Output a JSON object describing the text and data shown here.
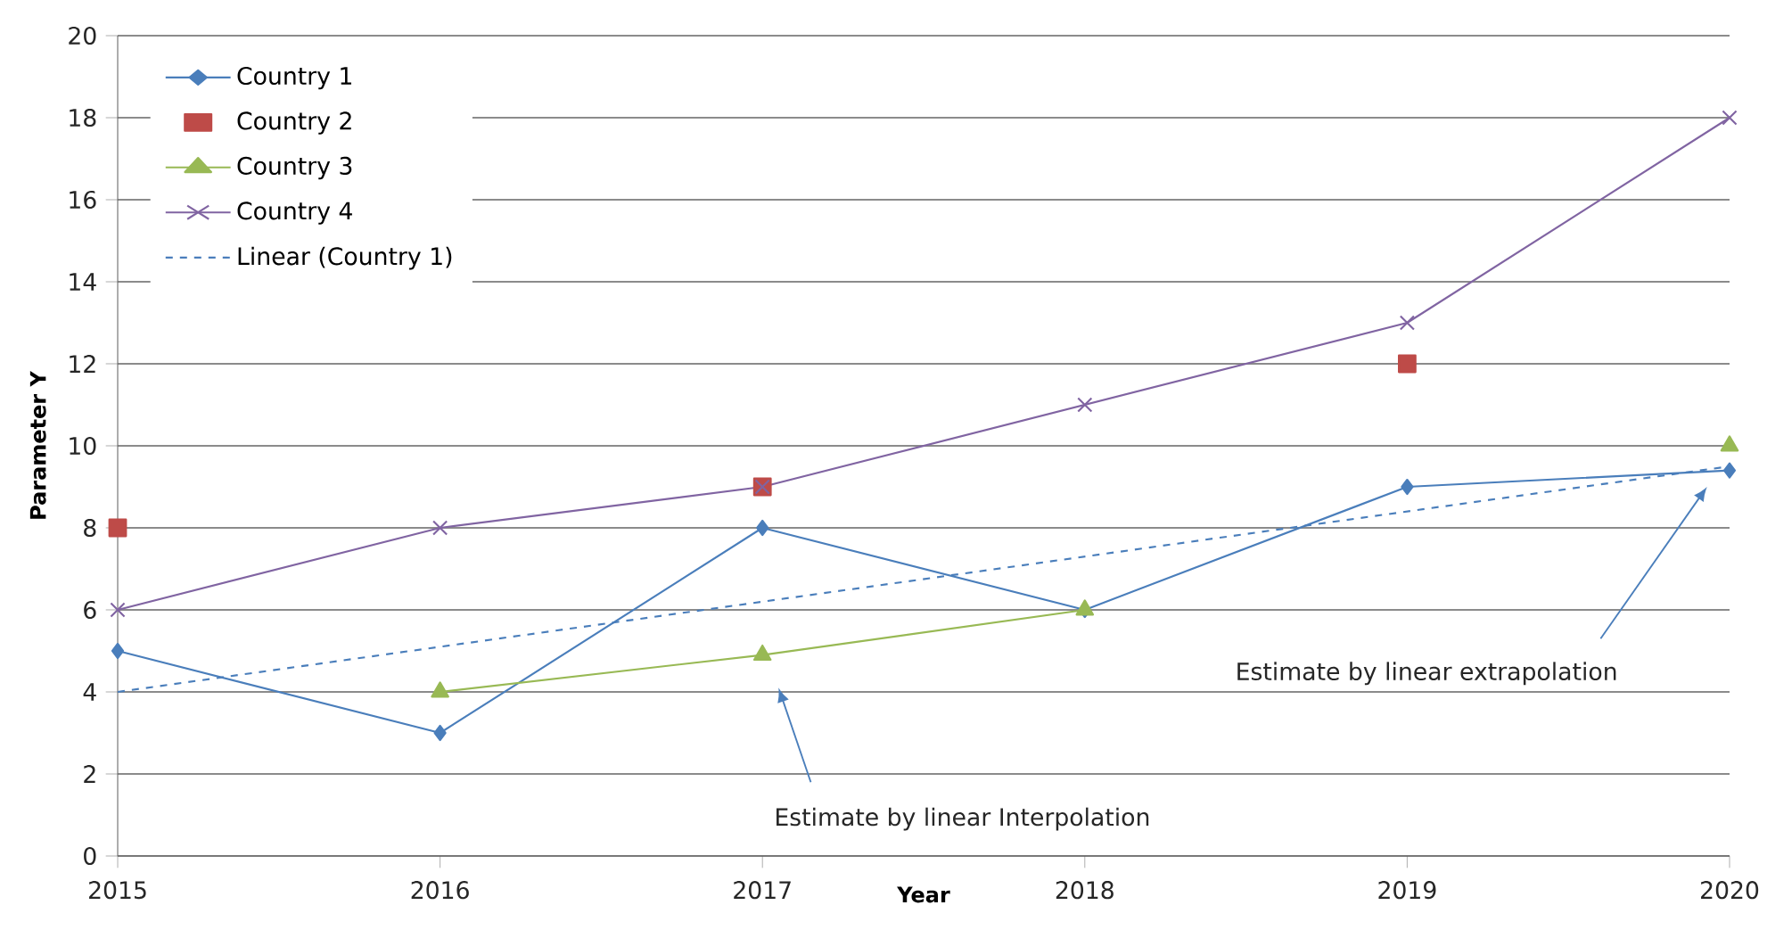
{
  "chart_data": {
    "type": "line",
    "xlabel": "Year",
    "ylabel": "Parameter Y",
    "x": [
      2015,
      2016,
      2017,
      2018,
      2019,
      2020
    ],
    "series": [
      {
        "name": "Country 1",
        "color": "#4a7ebb",
        "marker": "diamond",
        "values": [
          5,
          3,
          8,
          6,
          9,
          9.4
        ]
      },
      {
        "name": "Country 2",
        "type": "scatter",
        "color": "#be4b48",
        "marker": "square",
        "values": [
          8,
          null,
          9,
          null,
          12,
          null
        ]
      },
      {
        "name": "Country 3",
        "color": "#98b954",
        "marker": "triangle",
        "values": [
          null,
          4,
          4.9,
          6,
          null,
          10
        ]
      },
      {
        "name": "Country 4",
        "color": "#8064a2",
        "marker": "cross",
        "values": [
          6,
          8,
          9,
          11,
          13,
          18
        ]
      },
      {
        "name": "Linear (Country 1)",
        "color": "#4a7ebb",
        "marker": "none",
        "line_style": "dashed",
        "x": [
          2015,
          2020
        ],
        "values": [
          4.0,
          9.5
        ]
      }
    ],
    "xlim": [
      2015,
      2020
    ],
    "ylim": [
      0,
      20
    ],
    "xticks": [
      2015,
      2016,
      2017,
      2018,
      2019,
      2020
    ],
    "yticks": [
      0,
      2,
      4,
      6,
      8,
      10,
      12,
      14,
      16,
      18,
      20
    ],
    "grid": "y",
    "legend": "top left",
    "annotations": [
      "Estimate by linear Interpolation",
      "Estimate by linear extrapolation"
    ]
  }
}
